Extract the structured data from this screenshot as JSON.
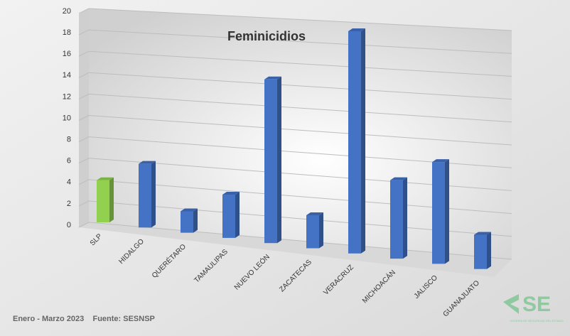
{
  "chart_data": {
    "type": "bar",
    "title": "Feminicidios",
    "categories": [
      "SLP",
      "HIDALGO",
      "QUERÉTARO",
      "TAMAULIPAS",
      "NUEVO LEÓN",
      "ZACATECAS",
      "VERACRUZ",
      "MICHOACÁN",
      "JALISCO",
      "GUANAJUATO"
    ],
    "values": [
      4,
      6,
      2,
      4,
      15,
      3,
      20,
      7,
      9,
      3
    ],
    "colors": [
      "#92d050",
      "#4472c4",
      "#4472c4",
      "#4472c4",
      "#4472c4",
      "#4472c4",
      "#4472c4",
      "#4472c4",
      "#4472c4",
      "#4472c4"
    ],
    "ylim": [
      0,
      20
    ],
    "yticks": [
      0,
      2,
      4,
      6,
      8,
      10,
      12,
      14,
      16,
      18,
      20
    ],
    "grid": true
  },
  "footer": "Enero - Marzo 2023    Fuente: SESNSP",
  "logo": {
    "mark": "SE",
    "caption": "VOCERÍA DE SEGURIDAD DEL ESTADO"
  }
}
